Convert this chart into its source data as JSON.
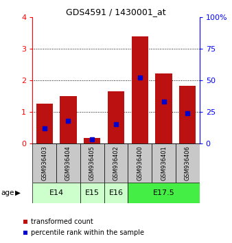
{
  "title": "GDS4591 / 1430001_at",
  "samples": [
    "GSM936403",
    "GSM936404",
    "GSM936405",
    "GSM936402",
    "GSM936400",
    "GSM936401",
    "GSM936406"
  ],
  "transformed_count": [
    1.25,
    1.5,
    0.17,
    1.65,
    3.38,
    2.22,
    1.82
  ],
  "percentile_rank_pct": [
    12,
    18,
    3,
    15,
    52,
    33,
    24
  ],
  "bar_color": "#bb1111",
  "dot_color": "#0000cc",
  "ylim_left": [
    0,
    4
  ],
  "ylim_right": [
    0,
    100
  ],
  "yticks_left": [
    0,
    1,
    2,
    3,
    4
  ],
  "yticks_right": [
    0,
    25,
    50,
    75,
    100
  ],
  "background_color": "#ffffff",
  "sample_box_color": "#c8c8c8",
  "age_e14_color": "#ccffcc",
  "age_e15_color": "#ccffcc",
  "age_e16_color": "#ccffcc",
  "age_e175_color": "#44ee44",
  "legend_red": "transformed count",
  "legend_blue": "percentile rank within the sample",
  "title_fontsize": 9,
  "axis_fontsize": 8,
  "sample_fontsize": 6,
  "legend_fontsize": 7
}
